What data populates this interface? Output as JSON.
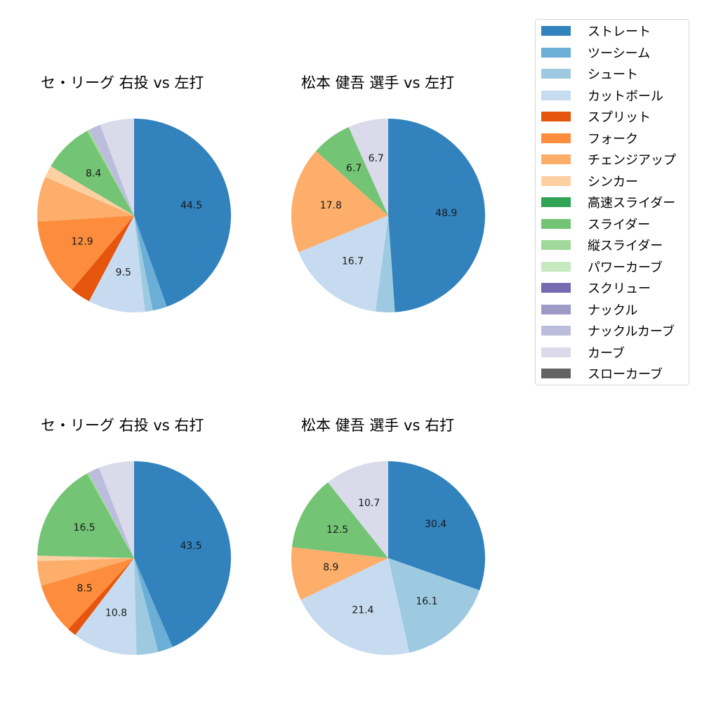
{
  "legend": {
    "items": [
      {
        "label": "ストレート",
        "color": "#3182bd"
      },
      {
        "label": "ツーシーム",
        "color": "#6baed6"
      },
      {
        "label": "シュート",
        "color": "#9ecae1"
      },
      {
        "label": "カットボール",
        "color": "#c6dbef"
      },
      {
        "label": "スプリット",
        "color": "#e6550d"
      },
      {
        "label": "フォーク",
        "color": "#fd8d3c"
      },
      {
        "label": "チェンジアップ",
        "color": "#fdae6b"
      },
      {
        "label": "シンカー",
        "color": "#fdd0a2"
      },
      {
        "label": "高速スライダー",
        "color": "#31a354"
      },
      {
        "label": "スライダー",
        "color": "#74c476"
      },
      {
        "label": "縦スライダー",
        "color": "#a1d99b"
      },
      {
        "label": "パワーカーブ",
        "color": "#c7e9c0"
      },
      {
        "label": "スクリュー",
        "color": "#756bb1"
      },
      {
        "label": "ナックル",
        "color": "#9e9ac8"
      },
      {
        "label": "ナックルカーブ",
        "color": "#bcbddc"
      },
      {
        "label": "カーブ",
        "color": "#dadaeb"
      },
      {
        "label": "スローカーブ",
        "color": "#636363"
      }
    ]
  },
  "chart_data": [
    {
      "type": "pie",
      "title": "セ・リーグ 右投 vs 左打",
      "categories": [
        "ストレート",
        "ツーシーム",
        "シュート",
        "カットボール",
        "スプリット",
        "フォーク",
        "チェンジアップ",
        "シンカー",
        "スライダー",
        "縦スライダー",
        "ナックルカーブ",
        "カーブ"
      ],
      "values": [
        44.5,
        2.4,
        1.3,
        9.5,
        3.4,
        12.9,
        7.5,
        2.0,
        8.4,
        0.4,
        2.0,
        5.7
      ],
      "labels_shown": [
        "44.5",
        "",
        "",
        "9.5",
        "",
        "12.9",
        "",
        "",
        "8.4",
        "",
        "",
        ""
      ],
      "start_angle": 90,
      "direction": "clockwise"
    },
    {
      "type": "pie",
      "title": "松本 健吾 選手 vs 左打",
      "categories": [
        "ストレート",
        "シュート",
        "カットボール",
        "チェンジアップ",
        "スライダー",
        "カーブ"
      ],
      "values": [
        48.9,
        3.2,
        16.7,
        17.8,
        6.7,
        6.7
      ],
      "labels_shown": [
        "48.9",
        "",
        "16.7",
        "17.8",
        "6.7",
        "6.7"
      ],
      "start_angle": 90,
      "direction": "clockwise"
    },
    {
      "type": "pie",
      "title": "セ・リーグ 右投 vs 右打",
      "categories": [
        "ストレート",
        "ツーシーム",
        "シュート",
        "カットボール",
        "スプリット",
        "フォーク",
        "チェンジアップ",
        "シンカー",
        "スライダー",
        "縦スライダー",
        "ナックルカーブ",
        "カーブ"
      ],
      "values": [
        43.5,
        2.5,
        3.6,
        10.8,
        1.5,
        8.5,
        4.1,
        0.9,
        16.5,
        0.3,
        1.9,
        5.9
      ],
      "labels_shown": [
        "43.5",
        "",
        "",
        "10.8",
        "",
        "8.5",
        "",
        "",
        "16.5",
        "",
        "",
        ""
      ],
      "start_angle": 90,
      "direction": "clockwise"
    },
    {
      "type": "pie",
      "title": "松本 健吾 選手 vs 右打",
      "categories": [
        "ストレート",
        "シュート",
        "カットボール",
        "チェンジアップ",
        "スライダー",
        "カーブ"
      ],
      "values": [
        30.4,
        16.1,
        21.4,
        8.9,
        12.5,
        10.7
      ],
      "labels_shown": [
        "30.4",
        "16.1",
        "21.4",
        "8.9",
        "12.5",
        "10.7"
      ],
      "start_angle": 90,
      "direction": "clockwise"
    }
  ]
}
